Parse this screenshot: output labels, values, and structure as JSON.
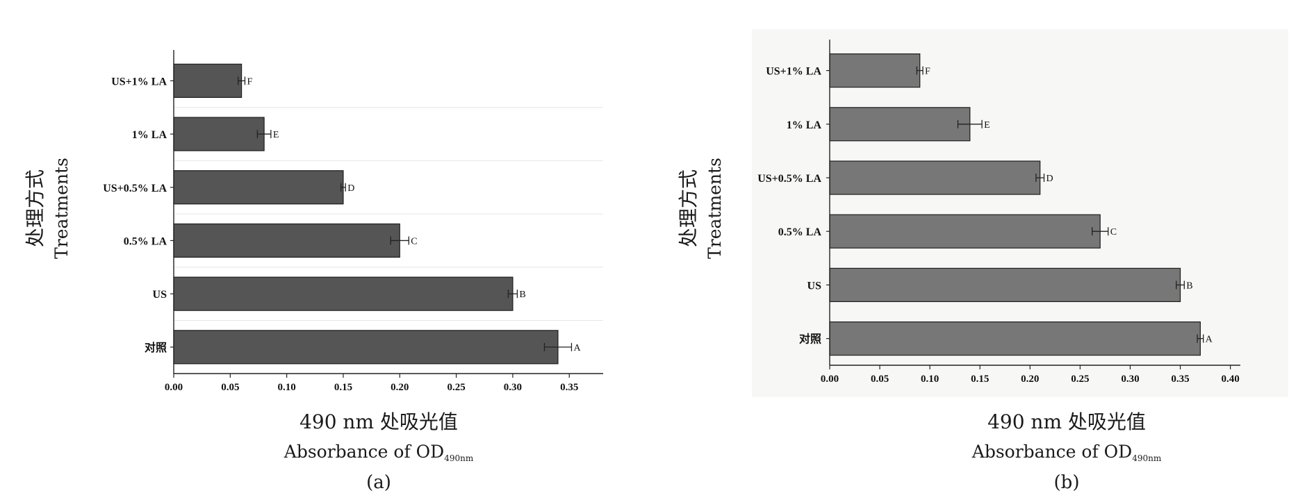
{
  "chart_data": [
    {
      "type": "bar",
      "orientation": "horizontal",
      "panel_label": "(a)",
      "ylabel": "处理方式",
      "ylabel_en": "Treatments",
      "xlabel": "490 nm 处吸光值",
      "xlabel_en": "Absorbance of OD",
      "xlabel_sub": "490nm",
      "categories": [
        "US+1% LA",
        "1% LA",
        "US+0.5% LA",
        "0.5% LA",
        "US",
        "对照"
      ],
      "values": [
        0.06,
        0.08,
        0.15,
        0.2,
        0.3,
        0.34
      ],
      "errors": [
        0.003,
        0.006,
        0.002,
        0.008,
        0.004,
        0.012
      ],
      "letters": [
        "F",
        "E",
        "D",
        "C",
        "B",
        "A"
      ],
      "xlim": [
        0,
        0.38
      ],
      "xticks": [
        "0.00",
        "0.05",
        "0.10",
        "0.15",
        "0.20",
        "0.25",
        "0.30",
        "0.35"
      ],
      "grid": true,
      "bar_color": "#555555"
    },
    {
      "type": "bar",
      "orientation": "horizontal",
      "panel_label": "(b)",
      "ylabel": "处理方式",
      "ylabel_en": "Treatments",
      "xlabel": "490 nm 处吸光值",
      "xlabel_en": "Absorbance of OD",
      "xlabel_sub": "490nm",
      "categories": [
        "US+1% LA",
        "1% LA",
        "US+0.5% LA",
        "0.5% LA",
        "US",
        "对照"
      ],
      "values": [
        0.09,
        0.14,
        0.21,
        0.27,
        0.35,
        0.37
      ],
      "errors": [
        0.003,
        0.012,
        0.004,
        0.008,
        0.004,
        0.003
      ],
      "letters": [
        "F",
        "E",
        "D",
        "C",
        "B",
        "A"
      ],
      "xlim": [
        0,
        0.41
      ],
      "xticks": [
        "0.00",
        "0.05",
        "0.10",
        "0.15",
        "0.20",
        "0.25",
        "0.30",
        "0.35",
        "0.40"
      ],
      "grid": false,
      "bar_color": "#777777"
    }
  ]
}
